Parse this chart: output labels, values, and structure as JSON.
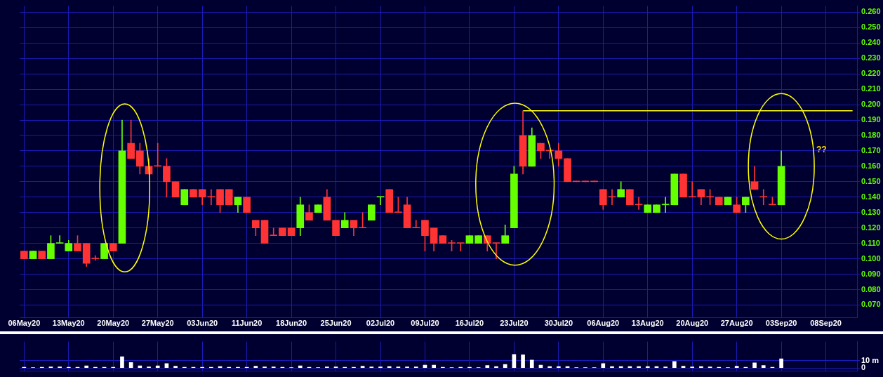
{
  "chart_data": [
    {
      "type": "candlestick",
      "categories": [
        "06May20",
        null,
        null,
        null,
        null,
        "13May20",
        null,
        null,
        null,
        null,
        "20May20",
        null,
        null,
        null,
        null,
        "27May20",
        null,
        null,
        null,
        null,
        "03Jun20",
        null,
        null,
        null,
        null,
        "11Jun20",
        null,
        null,
        null,
        null,
        "18Jun20",
        null,
        null,
        null,
        null,
        "25Jun20",
        null,
        null,
        null,
        null,
        "02Jul20",
        null,
        null,
        null,
        null,
        "09Jul20",
        null,
        null,
        null,
        null,
        "16Jul20",
        null,
        null,
        null,
        null,
        "23Jul20",
        null,
        null,
        null,
        null,
        "30Jul20",
        null,
        null,
        null,
        null,
        "06Aug20",
        null,
        null,
        null,
        null,
        "13Aug20",
        null,
        null,
        null,
        null,
        "20Aug20",
        null,
        null,
        null,
        null,
        "27Aug20",
        null,
        null,
        null,
        null,
        "03Sep20",
        null,
        null,
        null,
        null,
        "08Sep20",
        null,
        null,
        null
      ],
      "ohlc": [
        [
          0.105,
          0.105,
          0.1,
          0.1
        ],
        [
          0.1,
          0.105,
          0.1,
          0.105
        ],
        [
          0.105,
          0.105,
          0.1,
          0.1
        ],
        [
          0.1,
          0.115,
          0.1,
          0.11
        ],
        [
          0.11,
          0.115,
          0.11,
          0.11
        ],
        [
          0.105,
          0.112,
          0.105,
          0.11
        ],
        [
          0.11,
          0.115,
          0.105,
          0.105
        ],
        [
          0.11,
          0.11,
          0.095,
          0.097
        ],
        [
          0.1,
          0.102,
          0.099,
          0.1
        ],
        [
          0.1,
          0.11,
          0.1,
          0.11
        ],
        [
          0.11,
          0.11,
          0.105,
          0.105
        ],
        [
          0.11,
          0.19,
          0.11,
          0.17
        ],
        [
          0.175,
          0.19,
          0.165,
          0.165
        ],
        [
          0.17,
          0.175,
          0.155,
          0.16
        ],
        [
          0.16,
          0.165,
          0.155,
          0.155
        ],
        [
          0.16,
          0.175,
          0.16,
          0.16
        ],
        [
          0.16,
          0.165,
          0.14,
          0.15
        ],
        [
          0.15,
          0.15,
          0.14,
          0.14
        ],
        [
          0.135,
          0.145,
          0.135,
          0.145
        ],
        [
          0.145,
          0.145,
          0.14,
          0.14
        ],
        [
          0.145,
          0.145,
          0.135,
          0.14
        ],
        [
          0.14,
          0.145,
          0.135,
          0.14
        ],
        [
          0.145,
          0.145,
          0.13,
          0.135
        ],
        [
          0.145,
          0.145,
          0.135,
          0.135
        ],
        [
          0.135,
          0.14,
          0.13,
          0.14
        ],
        [
          0.14,
          0.14,
          0.13,
          0.13
        ],
        [
          0.125,
          0.125,
          0.115,
          0.12
        ],
        [
          0.125,
          0.125,
          0.11,
          0.11
        ],
        [
          0.115,
          0.12,
          0.115,
          0.115
        ],
        [
          0.12,
          0.12,
          0.115,
          0.115
        ],
        [
          0.12,
          0.12,
          0.115,
          0.115
        ],
        [
          0.12,
          0.14,
          0.115,
          0.135
        ],
        [
          0.13,
          0.135,
          0.125,
          0.125
        ],
        [
          0.13,
          0.135,
          0.13,
          0.135
        ],
        [
          0.14,
          0.145,
          0.125,
          0.125
        ],
        [
          0.125,
          0.125,
          0.115,
          0.115
        ],
        [
          0.12,
          0.13,
          0.12,
          0.125
        ],
        [
          0.125,
          0.125,
          0.115,
          0.12
        ],
        [
          0.12,
          0.13,
          0.12,
          0.12
        ],
        [
          0.125,
          0.135,
          0.125,
          0.135
        ],
        [
          0.14,
          0.14,
          0.135,
          0.14
        ],
        [
          0.145,
          0.145,
          0.13,
          0.13
        ],
        [
          0.13,
          0.14,
          0.13,
          0.13
        ],
        [
          0.135,
          0.14,
          0.12,
          0.12
        ],
        [
          0.12,
          0.125,
          0.12,
          0.12
        ],
        [
          0.125,
          0.125,
          0.105,
          0.115
        ],
        [
          0.12,
          0.12,
          0.105,
          0.11
        ],
        [
          0.115,
          0.115,
          0.11,
          0.11
        ],
        [
          0.11,
          0.112,
          0.105,
          0.11
        ],
        [
          0.11,
          0.11,
          0.105,
          0.11
        ],
        [
          0.11,
          0.115,
          0.11,
          0.115
        ],
        [
          0.11,
          0.115,
          0.11,
          0.115
        ],
        [
          0.115,
          0.115,
          0.105,
          0.11
        ],
        [
          0.11,
          0.11,
          0.1,
          0.11
        ],
        [
          0.11,
          0.122,
          0.11,
          0.115
        ],
        [
          0.12,
          0.16,
          0.12,
          0.155
        ],
        [
          0.18,
          0.196,
          0.155,
          0.16
        ],
        [
          0.16,
          0.185,
          0.16,
          0.18
        ],
        [
          0.175,
          0.175,
          0.165,
          0.17
        ],
        [
          0.17,
          0.17,
          0.165,
          0.17
        ],
        [
          0.17,
          0.175,
          0.16,
          0.165
        ],
        [
          0.165,
          0.165,
          0.15,
          0.15
        ],
        [
          0.15,
          0.15,
          0.15,
          0.15
        ],
        [
          0.15,
          0.15,
          0.15,
          0.15
        ],
        [
          0.15,
          0.15,
          0.15,
          0.15
        ],
        [
          0.145,
          0.145,
          0.132,
          0.135
        ],
        [
          0.14,
          0.145,
          0.135,
          0.14
        ],
        [
          0.14,
          0.15,
          0.14,
          0.145
        ],
        [
          0.145,
          0.145,
          0.135,
          0.135
        ],
        [
          0.135,
          0.14,
          0.132,
          0.135
        ],
        [
          0.13,
          0.135,
          0.13,
          0.135
        ],
        [
          0.13,
          0.135,
          0.13,
          0.135
        ],
        [
          0.135,
          0.14,
          0.13,
          0.135
        ],
        [
          0.135,
          0.155,
          0.135,
          0.155
        ],
        [
          0.155,
          0.155,
          0.14,
          0.14
        ],
        [
          0.14,
          0.15,
          0.14,
          0.14
        ],
        [
          0.145,
          0.145,
          0.135,
          0.14
        ],
        [
          0.14,
          0.145,
          0.135,
          0.14
        ],
        [
          0.14,
          0.14,
          0.135,
          0.135
        ],
        [
          0.135,
          0.14,
          0.135,
          0.14
        ],
        [
          0.135,
          0.14,
          0.13,
          0.13
        ],
        [
          0.135,
          0.14,
          0.13,
          0.14
        ],
        [
          0.15,
          0.16,
          0.145,
          0.145
        ],
        [
          0.14,
          0.145,
          0.135,
          0.14
        ],
        [
          0.135,
          0.14,
          0.135,
          0.135
        ],
        [
          0.135,
          0.17,
          0.135,
          0.16
        ],
        null,
        null,
        null,
        null,
        null,
        null,
        null,
        null
      ],
      "colors": [
        "#ff3333",
        "#66ff00",
        "#ff3333",
        "#66ff00",
        "#66ff00",
        "#66ff00",
        "#ff3333",
        "#ff3333",
        "#ff3333",
        "#66ff00",
        "#ff3333",
        "#66ff00",
        "#ff3333",
        "#ff3333",
        "#ff3333",
        "#ff3333",
        "#ff3333",
        "#ff3333",
        "#66ff00",
        "#ff3333",
        "#ff3333",
        "#ff3333",
        "#ff3333",
        "#ff3333",
        "#66ff00",
        "#ff3333",
        "#ff3333",
        "#ff3333",
        "#ff3333",
        "#ff3333",
        "#ff3333",
        "#66ff00",
        "#ff3333",
        "#66ff00",
        "#ff3333",
        "#ff3333",
        "#66ff00",
        "#ff3333",
        "#ff3333",
        "#66ff00",
        "#66ff00",
        "#ff3333",
        "#ff3333",
        "#ff3333",
        "#ff3333",
        "#ff3333",
        "#ff3333",
        "#ff3333",
        "#ff3333",
        "#ff3333",
        "#66ff00",
        "#66ff00",
        "#ff3333",
        "#ff3333",
        "#66ff00",
        "#66ff00",
        "#ff3333",
        "#66ff00",
        "#ff3333",
        "#ff3333",
        "#ff3333",
        "#ff3333",
        "#ff3333",
        "#ff3333",
        "#ff3333",
        "#ff3333",
        "#ff3333",
        "#66ff00",
        "#ff3333",
        "#ff3333",
        "#66ff00",
        "#66ff00",
        "#66ff00",
        "#66ff00",
        "#ff3333",
        "#ff3333",
        "#ff3333",
        "#ff3333",
        "#ff3333",
        "#66ff00",
        "#ff3333",
        "#66ff00",
        "#ff3333",
        "#ff3333",
        "#ff3333",
        "#66ff00",
        null,
        null,
        null,
        null,
        null,
        null,
        null,
        null
      ],
      "series": [
        {
          "type": "line",
          "color": "#ffff00",
          "values": [
            null,
            null,
            null,
            null,
            null,
            null,
            null,
            null,
            null,
            null,
            null,
            null,
            null,
            null,
            null,
            null,
            null,
            null,
            null,
            null,
            null,
            null,
            null,
            null,
            null,
            null,
            null,
            null,
            null,
            null,
            null,
            null,
            null,
            null,
            null,
            null,
            null,
            null,
            null,
            null,
            null,
            null,
            null,
            null,
            null,
            null,
            null,
            null,
            null,
            null,
            null,
            null,
            null,
            null,
            null,
            null,
            0.196,
            0.196,
            0.196,
            0.196,
            0.196,
            0.196,
            0.196,
            0.196,
            0.196,
            0.196,
            0.196,
            0.196,
            0.196,
            0.196,
            0.196,
            0.196,
            0.196,
            0.196,
            0.196,
            0.196,
            0.196,
            0.196,
            0.196,
            0.196,
            0.196,
            0.196,
            0.196,
            0.196,
            0.196,
            0.196,
            0.196,
            0.196,
            0.196,
            0.196,
            0.196,
            0.196,
            0.196,
            0.196
          ]
        }
      ],
      "annotations": [
        "??"
      ],
      "ylim": [
        0.062,
        0.264
      ],
      "yticks": [
        {
          "value": 0.07,
          "label": "0.070"
        },
        {
          "value": 0.08,
          "label": "0.080"
        },
        {
          "value": 0.09,
          "label": "0.090"
        },
        {
          "value": 0.1,
          "label": "0.100"
        },
        {
          "value": 0.11,
          "label": "0.110"
        },
        {
          "value": 0.12,
          "label": "0.120"
        },
        {
          "value": 0.13,
          "label": "0.130"
        },
        {
          "value": 0.14,
          "label": "0.140"
        },
        {
          "value": 0.15,
          "label": "0.150"
        },
        {
          "value": 0.16,
          "label": "0.160"
        },
        {
          "value": 0.17,
          "label": "0.170"
        },
        {
          "value": 0.18,
          "label": "0.180"
        },
        {
          "value": 0.19,
          "label": "0.190"
        },
        {
          "value": 0.2,
          "label": "0.200"
        },
        {
          "value": 0.21,
          "label": "0.210"
        },
        {
          "value": 0.22,
          "label": "0.220"
        },
        {
          "value": 0.23,
          "label": "0.230"
        },
        {
          "value": 0.24,
          "label": "0.240"
        },
        {
          "value": 0.25,
          "label": "0.250"
        },
        {
          "value": 0.26,
          "label": "0.260"
        }
      ],
      "grid": true
    },
    {
      "type": "bar",
      "categories": [
        null,
        null,
        null,
        null,
        null,
        null,
        null,
        null,
        null,
        null,
        null,
        null,
        null,
        null,
        null,
        null,
        null,
        null,
        null,
        null,
        null,
        null,
        null,
        null,
        null,
        null,
        null,
        null,
        null,
        null,
        null,
        null,
        null,
        null,
        null,
        null,
        null,
        null,
        null,
        null,
        null,
        null,
        null,
        null,
        null,
        null,
        null,
        null,
        null,
        null,
        null,
        null,
        null,
        null,
        null,
        null,
        null,
        null,
        null,
        null,
        null,
        null,
        null,
        null,
        null,
        null,
        null,
        null,
        null,
        null,
        null,
        null,
        null,
        null,
        null,
        null,
        null,
        null,
        null,
        null,
        null,
        null,
        null,
        null,
        null,
        null,
        null,
        null,
        null,
        null,
        null,
        null,
        null,
        null
      ],
      "values": [
        1,
        0.5,
        1,
        1.5,
        1.5,
        1,
        1,
        3,
        1,
        1,
        1,
        15.5,
        7.5,
        3,
        1.5,
        3,
        6,
        2.5,
        1,
        1,
        1,
        1,
        2,
        1,
        1,
        1,
        2.5,
        1.5,
        1.5,
        1,
        0.5,
        3,
        1,
        0.5,
        1.5,
        1.5,
        1,
        1,
        2.5,
        1.5,
        1.5,
        2,
        1.5,
        1.5,
        1.5,
        4,
        4,
        1,
        0.5,
        1,
        1,
        0.5,
        3.5,
        2,
        5,
        18.5,
        18,
        11,
        4,
        2,
        2,
        2,
        0.5,
        0.5,
        0.5,
        6,
        2,
        2,
        2,
        2,
        2,
        2,
        1.5,
        9,
        2.5,
        1.5,
        2,
        1.5,
        1,
        0.5,
        2.5,
        1,
        7,
        3.5,
        1,
        12.5,
        null,
        null,
        null,
        null,
        null,
        null,
        null,
        null
      ],
      "color": "#ffffff",
      "ylim": [
        -4,
        36
      ],
      "yticks": [
        0,
        {
          "value": 10,
          "label": "10 m"
        }
      ],
      "tick_labels": "y",
      "grid": true
    }
  ]
}
